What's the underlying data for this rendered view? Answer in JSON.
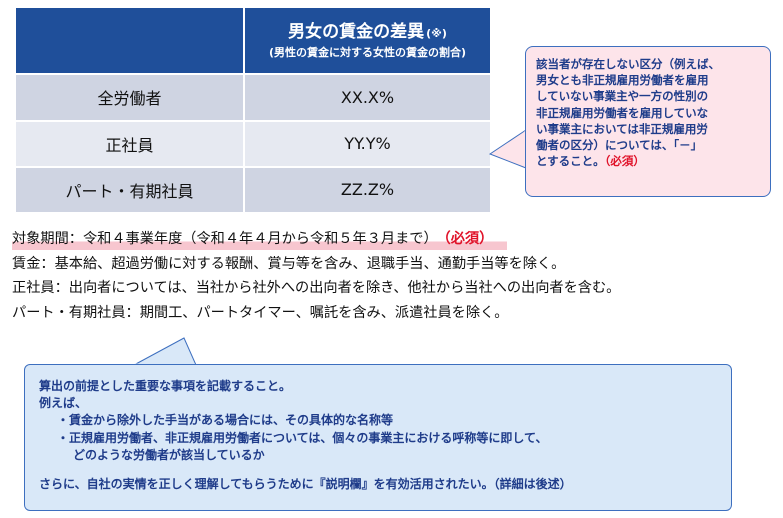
{
  "table": {
    "header": {
      "title": "男女の賃金の差異",
      "note_mark": "(※)",
      "subtitle": "(男性の賃金に対する女性の賃金の割合)"
    },
    "rows": [
      {
        "category": "全労働者",
        "value": "XX.X%"
      },
      {
        "category": "正社員",
        "value": "YY.Y%"
      },
      {
        "category": "パート・有期社員",
        "value": "ZZ.Z%"
      }
    ]
  },
  "callout_right": {
    "lines": [
      "該当者が存在しない区分（例えば、",
      "男女とも非正規雇用労働者を雇用",
      "していない事業主や一方の性別の",
      "非正規雇用労働者を雇用していな",
      "い事業主においては非正規雇用労",
      "働者の区分）については、「－」",
      "とすること。"
    ],
    "required": "（必須）"
  },
  "notes": {
    "period": "対象期間：令和４事業年度（令和４年４月から令和５年３月まで）",
    "period_required": "（必須）",
    "wage": "賃金：基本給、超過労働に対する報酬、賞与等を含み、退職手当、通勤手当等を除く。",
    "regular": "正社員：出向者については、当社から社外への出向者を除き、他社から当社への出向者を含む。",
    "parttime": "パート・有期社員：期間工、パートタイマー、嘱託を含み、派遣社員を除く。"
  },
  "callout_bottom": {
    "line1": "算出の前提とした重要な事項を記載すること。",
    "line2": "例えば、",
    "line3": "・賃金から除外した手当がある場合には、その具体的な名称等",
    "line4": "・正規雇用労働者、非正規雇用労働者については、個々の事業主における呼称等に即して、",
    "line5": "どのような労働者が該当しているか",
    "line6": "さらに、自社の実情を正しく理解してもらうために『説明欄』を有効活用されたい。（詳細は後述）"
  },
  "colors": {
    "header_bg": "#1f4f9a",
    "row_dark": "#cfd4e2",
    "row_light": "#e6e9f1",
    "callout_pink": "#fde4ea",
    "callout_blue": "#d9e8f8",
    "required_red": "#e0132a"
  }
}
